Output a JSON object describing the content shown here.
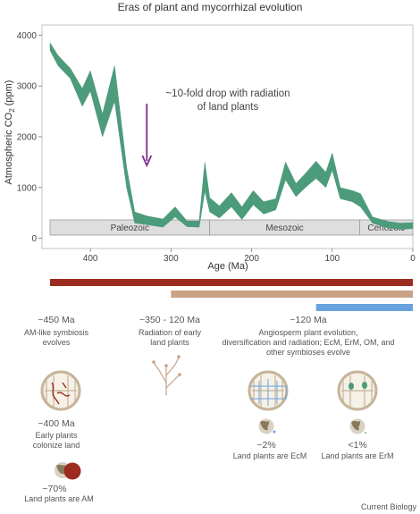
{
  "chart_data": {
    "type": "area",
    "title": "Eras of plant and mycorrhizal evolution",
    "xlabel": "Age (Ma)",
    "ylabel": "Atmospheric CO",
    "ylabel_sub": "2",
    "ylabel_unit": " (ppm)",
    "xlim": [
      460,
      0
    ],
    "ylim": [
      -200,
      4200
    ],
    "x_ticks": [
      400,
      300,
      200,
      100,
      0
    ],
    "y_ticks": [
      0,
      1000,
      2000,
      3000,
      4000
    ],
    "series": [
      {
        "color": "#4c9b7b",
        "x": [
          450,
          440,
          425,
          410,
          400,
          385,
          370,
          355,
          345,
          330,
          310,
          295,
          280,
          265,
          258,
          252,
          240,
          225,
          212,
          198,
          185,
          170,
          158,
          145,
          132,
          120,
          108,
          100,
          90,
          75,
          65,
          50,
          30,
          15,
          0
        ],
        "upper": [
          3850,
          3600,
          3350,
          2950,
          3300,
          2450,
          3400,
          1400,
          520,
          440,
          380,
          620,
          340,
          340,
          1500,
          800,
          640,
          900,
          620,
          940,
          720,
          780,
          1500,
          1080,
          1300,
          1520,
          1300,
          1680,
          1000,
          940,
          880,
          420,
          330,
          300,
          310
        ],
        "lower": [
          3700,
          3400,
          3150,
          2600,
          2900,
          2000,
          2700,
          1000,
          300,
          270,
          220,
          420,
          230,
          220,
          930,
          520,
          400,
          620,
          370,
          660,
          480,
          560,
          1150,
          820,
          1020,
          1180,
          1000,
          1340,
          780,
          720,
          620,
          300,
          200,
          180,
          190
        ]
      }
    ],
    "eras": [
      {
        "name": "Paleozoic",
        "start": 450,
        "end": 252
      },
      {
        "name": "Mesozoic",
        "start": 252,
        "end": 66
      },
      {
        "name": "Cenozoic",
        "start": 66,
        "end": 0
      }
    ],
    "annotation": {
      "text_line1": "~10-fold drop with radiation",
      "text_line2": "of land plants",
      "arrow_x": 330,
      "arrow_color": "#7b2d8e"
    },
    "timeline_bars": [
      {
        "color": "#9b2c1f",
        "start": 450,
        "end": 0
      },
      {
        "color": "#c9a184",
        "start": 300,
        "end": 0
      },
      {
        "color": "#6aa2dd",
        "start": 120,
        "end": 0
      }
    ]
  },
  "texts": {
    "t450_age": "~450 Ma",
    "t450_desc1": "AM-like symbiosis",
    "t450_desc2": "evolves",
    "t350_age": "~350 - 120 Ma",
    "t350_desc1": "Radiation of early",
    "t350_desc2": "land plants",
    "t120_age": "~120 Ma",
    "t120_desc1": "Angiosperm plant evolution,",
    "t120_desc2": "diversification and radiation; EcM, ErM, OM, and",
    "t120_desc3": "other symbioses evolve",
    "t400_age": "~400 Ma",
    "t400_desc1": "Early plants",
    "t400_desc2": "colonize land",
    "am_pct": "~70%",
    "am_desc": "Land plants are AM",
    "ecm_pct": "~2%",
    "ecm_desc": "Land plants are EcM",
    "erm_pct": "<1%",
    "erm_desc": "Land plants are ErM",
    "credit": "Current Biology"
  },
  "colors": {
    "am": "#9b2c1f",
    "ecm": "#6aa2dd",
    "erm": "#4c9b7b",
    "globe_land": "#8a7a5c",
    "globe_water": "#d8d2c4",
    "cell_wall": "#c6b49a"
  }
}
